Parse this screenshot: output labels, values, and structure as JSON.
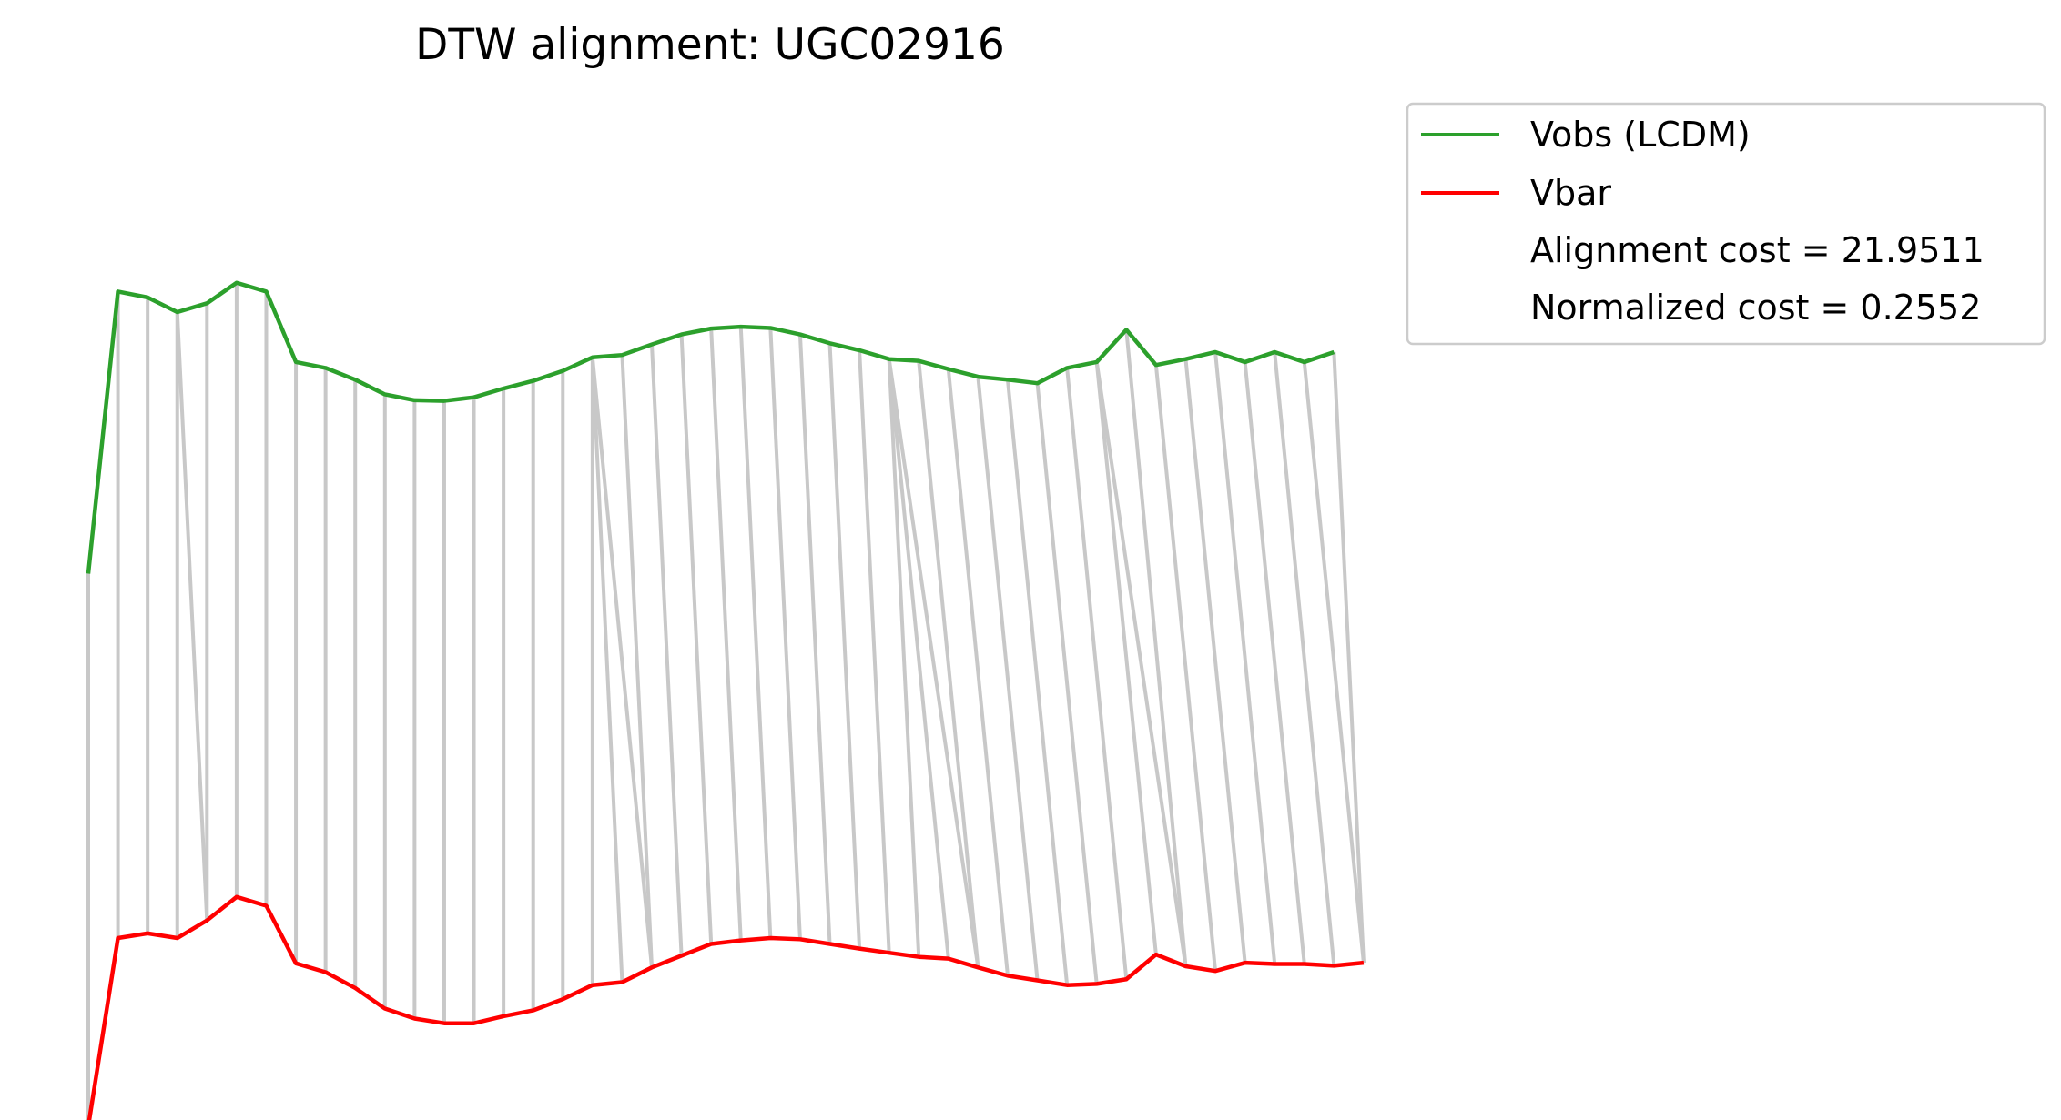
{
  "chart_data": {
    "type": "line",
    "title": "DTW alignment: UGC02916",
    "xlabel": "",
    "ylabel": "",
    "axes_visible": false,
    "grid": false,
    "legend_position": "outside-right",
    "series": [
      {
        "name": "Vobs (LCDM)",
        "color": "#2ca02c",
        "values": [
          0.25,
          0.73,
          0.72,
          0.695,
          0.71,
          0.745,
          0.73,
          0.61,
          0.6,
          0.58,
          0.555,
          0.545,
          0.544,
          0.55,
          0.565,
          0.578,
          0.595,
          0.618,
          0.622,
          0.64,
          0.657,
          0.667,
          0.67,
          0.668,
          0.657,
          0.642,
          0.63,
          0.615,
          0.612,
          0.598,
          0.585,
          0.58,
          0.574,
          0.6,
          0.61,
          0.665,
          0.605,
          0.615,
          0.627,
          0.61,
          0.627,
          0.61,
          0.627
        ]
      },
      {
        "name": "Vbar",
        "color": "#ff0000",
        "values": [
          -0.69,
          -0.37,
          -0.362,
          -0.37,
          -0.34,
          -0.3,
          -0.315,
          -0.413,
          -0.428,
          -0.455,
          -0.49,
          -0.507,
          -0.515,
          -0.515,
          -0.503,
          -0.493,
          -0.474,
          -0.45,
          -0.445,
          -0.42,
          -0.4,
          -0.38,
          -0.374,
          -0.37,
          -0.372,
          -0.38,
          -0.388,
          -0.395,
          -0.402,
          -0.405,
          -0.42,
          -0.434,
          -0.442,
          -0.45,
          -0.448,
          -0.44,
          -0.398,
          -0.418,
          -0.426,
          -0.412,
          -0.414,
          -0.414,
          -0.417,
          -0.412
        ]
      }
    ],
    "alignment_path": [
      [
        0,
        0
      ],
      [
        1,
        1
      ],
      [
        2,
        2
      ],
      [
        3,
        3
      ],
      [
        3,
        4
      ],
      [
        4,
        4
      ],
      [
        5,
        5
      ],
      [
        6,
        6
      ],
      [
        7,
        7
      ],
      [
        8,
        8
      ],
      [
        9,
        9
      ],
      [
        10,
        10
      ],
      [
        11,
        11
      ],
      [
        12,
        12
      ],
      [
        13,
        13
      ],
      [
        14,
        14
      ],
      [
        15,
        15
      ],
      [
        16,
        16
      ],
      [
        17,
        17
      ],
      [
        17,
        18
      ],
      [
        17,
        19
      ],
      [
        18,
        19
      ],
      [
        19,
        20
      ],
      [
        20,
        21
      ],
      [
        21,
        22
      ],
      [
        22,
        23
      ],
      [
        23,
        24
      ],
      [
        24,
        25
      ],
      [
        25,
        26
      ],
      [
        26,
        27
      ],
      [
        27,
        28
      ],
      [
        27,
        29
      ],
      [
        27,
        30
      ],
      [
        28,
        30
      ],
      [
        29,
        31
      ],
      [
        30,
        32
      ],
      [
        31,
        33
      ],
      [
        32,
        34
      ],
      [
        33,
        35
      ],
      [
        34,
        36
      ],
      [
        34,
        37
      ],
      [
        35,
        37
      ],
      [
        36,
        38
      ],
      [
        37,
        39
      ],
      [
        38,
        40
      ],
      [
        39,
        41
      ],
      [
        40,
        42
      ],
      [
        41,
        43
      ],
      [
        42,
        43
      ]
    ],
    "legend_entries": [
      {
        "label": "Vobs (LCDM)",
        "color": "#2ca02c",
        "has_line": true
      },
      {
        "label": "Vbar",
        "color": "#ff0000",
        "has_line": true
      },
      {
        "label": "Alignment cost = 21.9511",
        "has_line": false
      },
      {
        "label": "Normalized cost = 0.2552",
        "has_line": false
      }
    ],
    "alignment_line_color": "#c8c8c8"
  }
}
